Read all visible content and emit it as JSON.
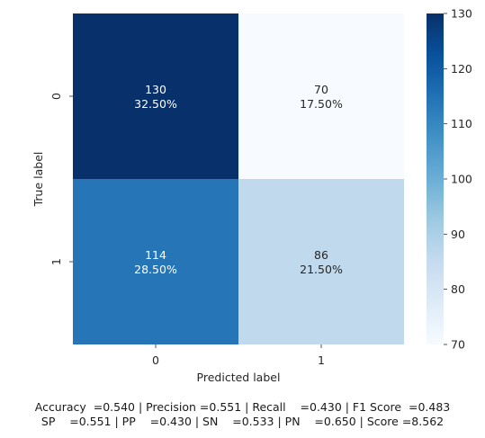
{
  "chart_data": {
    "type": "heatmap",
    "xlabel": "Predicted label",
    "ylabel": "True label",
    "x_categories": [
      "0",
      "1"
    ],
    "y_categories": [
      "0",
      "1"
    ],
    "matrix": [
      [
        130,
        70
      ],
      [
        114,
        86
      ]
    ],
    "percent_labels": [
      [
        "32.50%",
        "17.50%"
      ],
      [
        "28.50%",
        "21.50%"
      ]
    ],
    "colormap": "Blues",
    "colorbar": {
      "min": 70,
      "max": 130,
      "ticks": [
        70,
        80,
        90,
        100,
        110,
        120,
        130
      ]
    },
    "colors": {
      "low": "#f7fbff",
      "high": "#08306b"
    }
  },
  "footer": {
    "line1": "Accuracy  =0.540 | Precision =0.551 | Recall    =0.430 | F1 Score  =0.483",
    "line2": "SP    =0.551 | PP    =0.430 | SN    =0.533 | PN    =0.650 | Score =8.562"
  }
}
